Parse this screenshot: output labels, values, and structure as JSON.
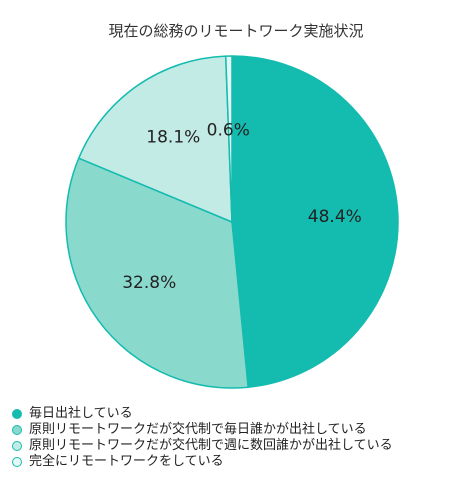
{
  "chart_data": {
    "type": "pie",
    "title": "現在の総務のリモートワーク実施状況",
    "legend_position": "bottom-left",
    "slices": [
      {
        "label": "毎日出社している",
        "value": 48.4,
        "value_label": "48.4%",
        "color": "#14bbaf"
      },
      {
        "label": "原則リモートワークだが交代制で毎日誰かが出社している",
        "value": 32.8,
        "value_label": "32.8%",
        "color": "#8ad9cd"
      },
      {
        "label": "原則リモートワークだが交代制で週に数回誰かが出社している",
        "value": 18.1,
        "value_label": "18.1%",
        "color": "#c3ebe5"
      },
      {
        "label": "完全にリモートワークをしている",
        "value": 0.6,
        "value_label": "0.6%",
        "color": "#e5f7f5"
      }
    ],
    "stroke_color": "#14bbaf"
  }
}
